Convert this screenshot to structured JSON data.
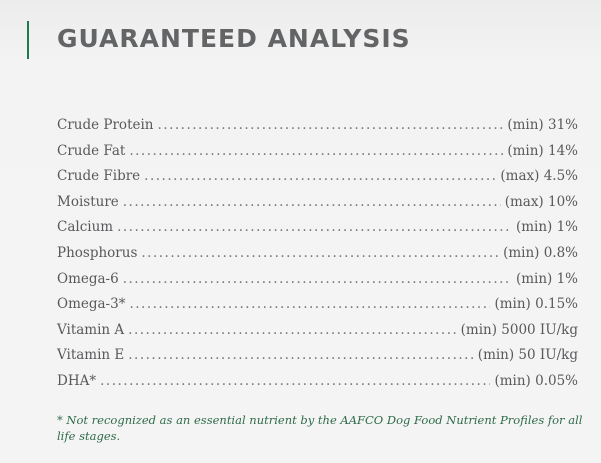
{
  "title": "GUARANTEED ANALYSIS",
  "accent_color": "#1f7a4a",
  "rows": [
    {
      "name": "Crude Protein",
      "value": "(min) 31%"
    },
    {
      "name": "Crude Fat",
      "value": "(min) 14%"
    },
    {
      "name": "Crude Fibre",
      "value": "(max) 4.5%"
    },
    {
      "name": "Moisture",
      "value": "(max) 10%"
    },
    {
      "name": "Calcium",
      "value": "(min) 1%"
    },
    {
      "name": "Phosphorus",
      "value": "(min) 0.8%"
    },
    {
      "name": "Omega-6",
      "value": "(min) 1%"
    },
    {
      "name": "Omega-3*",
      "value": "(min) 0.15%"
    },
    {
      "name": "Vitamin A",
      "value": "(min) 5000 IU/kg"
    },
    {
      "name": "Vitamin E",
      "value": "(min) 50 IU/kg"
    },
    {
      "name": "DHA*",
      "value": "(min) 0.05%"
    }
  ],
  "footnote": "* Not recognized as an essential nutrient by the AAFCO Dog Food Nutrient Profiles for all life stages."
}
